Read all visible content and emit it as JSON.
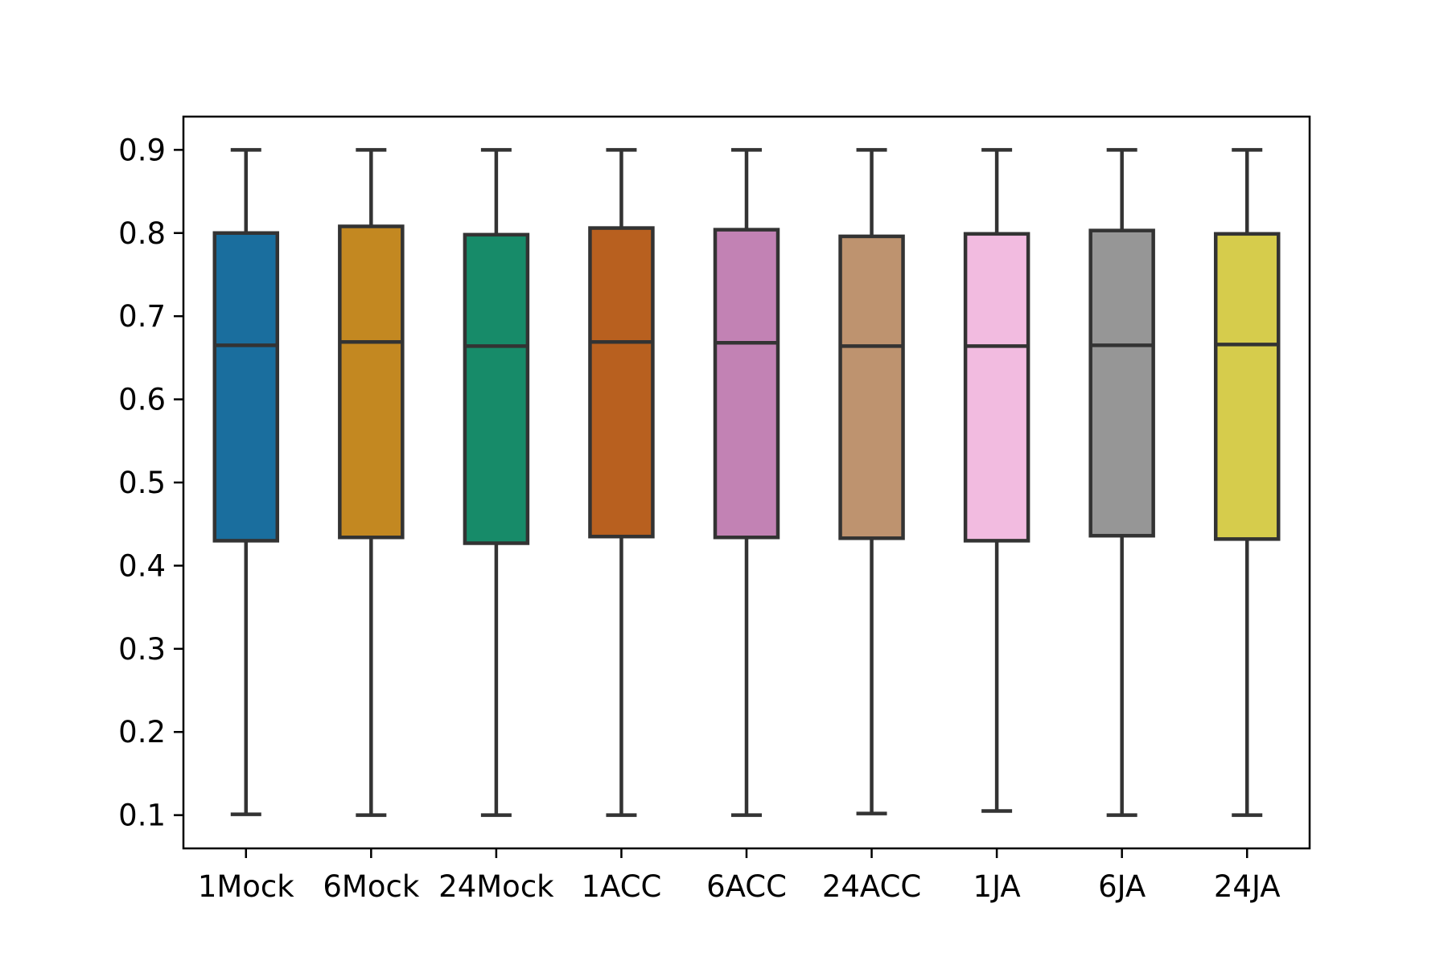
{
  "chart_data": {
    "type": "box",
    "title": "",
    "xlabel": "",
    "ylabel": "",
    "ylim": [
      0.06,
      0.94
    ],
    "yticks": [
      0.1,
      0.2,
      0.3,
      0.4,
      0.5,
      0.6,
      0.7,
      0.8,
      0.9
    ],
    "ytick_labels": [
      "0.1",
      "0.2",
      "0.3",
      "0.4",
      "0.5",
      "0.6",
      "0.7",
      "0.8",
      "0.9"
    ],
    "grid": false,
    "legend": "none",
    "categories": [
      "1Mock",
      "6Mock",
      "24Mock",
      "1ACC",
      "6ACC",
      "24ACC",
      "1JA",
      "6JA",
      "24JA"
    ],
    "boxes": [
      {
        "category": "1Mock",
        "min": 0.101,
        "q1": 0.43,
        "median": 0.665,
        "q3": 0.8,
        "max": 0.9,
        "color": "#1a6e9e"
      },
      {
        "category": "6Mock",
        "min": 0.1,
        "q1": 0.434,
        "median": 0.669,
        "q3": 0.808,
        "max": 0.9,
        "color": "#c38821"
      },
      {
        "category": "24Mock",
        "min": 0.1,
        "q1": 0.427,
        "median": 0.664,
        "q3": 0.798,
        "max": 0.9,
        "color": "#178b69"
      },
      {
        "category": "1ACC",
        "min": 0.1,
        "q1": 0.435,
        "median": 0.669,
        "q3": 0.806,
        "max": 0.9,
        "color": "#b8601f"
      },
      {
        "category": "6ACC",
        "min": 0.1,
        "q1": 0.434,
        "median": 0.668,
        "q3": 0.804,
        "max": 0.9,
        "color": "#c282b4"
      },
      {
        "category": "24ACC",
        "min": 0.102,
        "q1": 0.433,
        "median": 0.664,
        "q3": 0.796,
        "max": 0.9,
        "color": "#be936f"
      },
      {
        "category": "1JA",
        "min": 0.105,
        "q1": 0.43,
        "median": 0.664,
        "q3": 0.799,
        "max": 0.9,
        "color": "#f2bbe0"
      },
      {
        "category": "6JA",
        "min": 0.1,
        "q1": 0.436,
        "median": 0.665,
        "q3": 0.803,
        "max": 0.9,
        "color": "#969696"
      },
      {
        "category": "24JA",
        "min": 0.1,
        "q1": 0.432,
        "median": 0.666,
        "q3": 0.799,
        "max": 0.9,
        "color": "#d6cc4c"
      }
    ],
    "edge_color": "#333333",
    "axis_color": "#000000"
  }
}
